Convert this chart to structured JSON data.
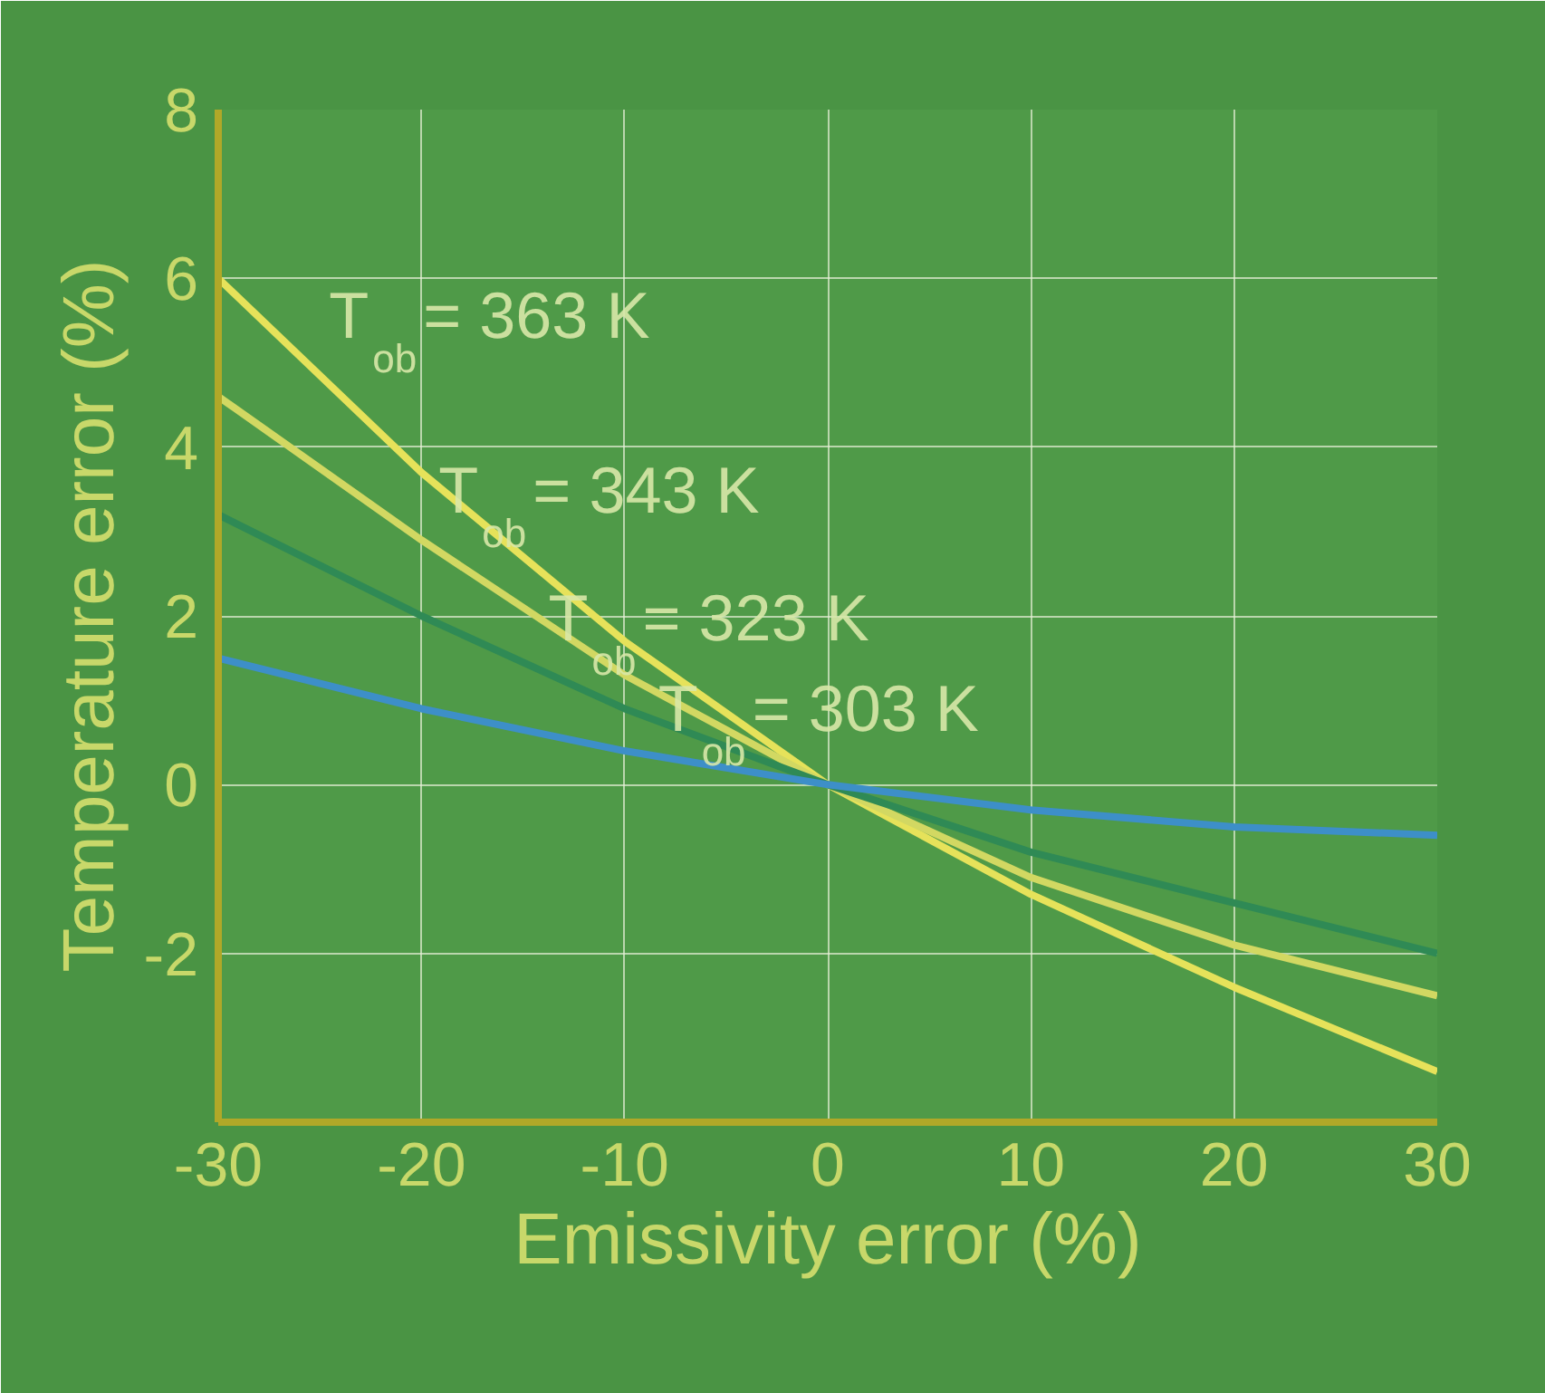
{
  "chart_data": {
    "type": "line",
    "xlabel": "Emissivity error (%)",
    "ylabel": "Temperature error (%)",
    "x": [
      -30,
      -20,
      -10,
      0,
      10,
      20,
      30
    ],
    "series": [
      {
        "name": "T$_{ob}$ = 363 K",
        "color": "#e6e25a",
        "values": [
          6.0,
          3.7,
          1.7,
          0,
          -1.3,
          -2.4,
          -3.4
        ]
      },
      {
        "name": "T$_{ob}$ = 343 K",
        "color": "#d2d862",
        "values": [
          4.6,
          2.9,
          1.3,
          0,
          -1.1,
          -1.9,
          -2.5
        ]
      },
      {
        "name": "T$_{ob}$ = 323 K",
        "color": "#2f8a55",
        "values": [
          3.2,
          2.0,
          0.9,
          0,
          -0.8,
          -1.4,
          -2.0
        ]
      },
      {
        "name": "T$_{ob}$ = 303 K",
        "color": "#3d8fc8",
        "values": [
          1.5,
          0.9,
          0.4,
          0,
          -0.3,
          -0.5,
          -0.6
        ]
      }
    ],
    "xlim": [
      -30,
      30
    ],
    "ylim": [
      -4,
      8
    ],
    "xticks": [
      -30,
      -20,
      -10,
      0,
      10,
      20,
      30
    ],
    "yticks": [
      -2,
      0,
      2,
      4,
      6,
      8
    ],
    "grid": true,
    "marker": "none",
    "line_style": "solid"
  }
}
